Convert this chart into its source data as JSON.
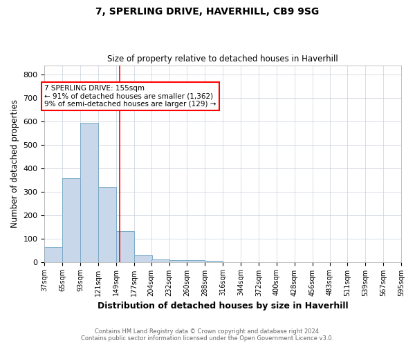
{
  "title": "7, SPERLING DRIVE, HAVERHILL, CB9 9SG",
  "subtitle": "Size of property relative to detached houses in Haverhill",
  "xlabel": "Distribution of detached houses by size in Haverhill",
  "ylabel": "Number of detached properties",
  "bar_color": "#c8d8ea",
  "bar_edge_color": "#7aaac8",
  "bin_starts": [
    37,
    65,
    93,
    121,
    149,
    177,
    204,
    232,
    260,
    288,
    316,
    344,
    372,
    400,
    428,
    456,
    483,
    511,
    539,
    567
  ],
  "bin_width": 28,
  "bar_heights": [
    65,
    357,
    595,
    319,
    130,
    28,
    10,
    7,
    7,
    5,
    0,
    0,
    0,
    0,
    0,
    0,
    0,
    0,
    0,
    0
  ],
  "red_line_x": 155,
  "ylim": [
    0,
    840
  ],
  "yticks": [
    0,
    100,
    200,
    300,
    400,
    500,
    600,
    700,
    800
  ],
  "xtick_labels": [
    "37sqm",
    "65sqm",
    "93sqm",
    "121sqm",
    "149sqm",
    "177sqm",
    "204sqm",
    "232sqm",
    "260sqm",
    "288sqm",
    "316sqm",
    "344sqm",
    "372sqm",
    "400sqm",
    "428sqm",
    "456sqm",
    "483sqm",
    "511sqm",
    "539sqm",
    "567sqm",
    "595sqm"
  ],
  "annotation_lines": [
    "7 SPERLING DRIVE: 155sqm",
    "← 91% of detached houses are smaller (1,362)",
    "9% of semi-detached houses are larger (129) →"
  ],
  "footer_line1": "Contains HM Land Registry data © Crown copyright and database right 2024.",
  "footer_line2": "Contains public sector information licensed under the Open Government Licence v3.0.",
  "background_color": "#ffffff",
  "grid_color": "#c8d0da"
}
